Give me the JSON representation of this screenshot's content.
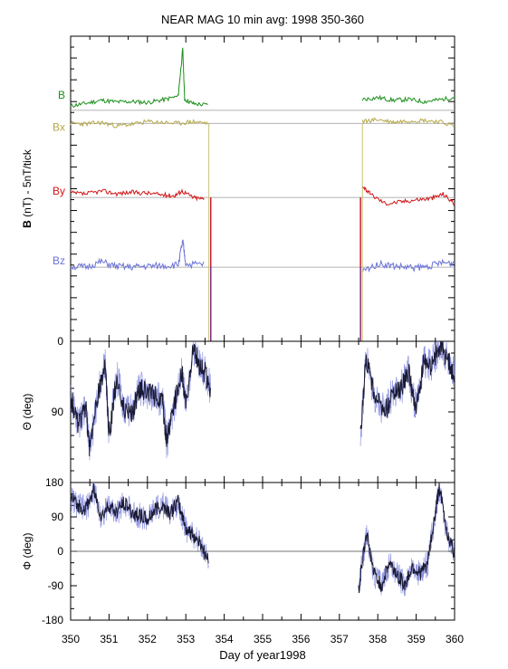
{
  "title": "NEAR MAG 10 min avg: 1998 350-360",
  "xlabel": "Day of year1998",
  "colors": {
    "B": "#1a8f1a",
    "Bx": "#b5a84a",
    "By": "#d01515",
    "Bz": "#6b73d6",
    "theta_fine": "#6b73d6",
    "theta_main": "#1a1a33",
    "phi_fine": "#6b73d6",
    "phi_main": "#1a1a33",
    "vline_yellow": "#c8c27a",
    "vline_red": "#c01020",
    "vline_purple": "#6a2c9a"
  },
  "chart_data": [
    {
      "type": "line",
      "panel": "B",
      "ylabel_bold": "B",
      "ylabel_rest": " (nT) - 5nT/tick",
      "y_tick_labels": [
        {
          "value": 0,
          "label": "0"
        }
      ],
      "x": {
        "range": [
          350,
          360
        ],
        "ticks": [
          350,
          351,
          352,
          353,
          354,
          355,
          356,
          357,
          358,
          359,
          360
        ]
      },
      "series": [
        {
          "name": "B",
          "offset": 53,
          "points": [
            [
              350.0,
              54
            ],
            [
              350.4,
              54.6
            ],
            [
              350.8,
              55.3
            ],
            [
              351.2,
              54.9
            ],
            [
              351.6,
              55.0
            ],
            [
              352.0,
              54.8
            ],
            [
              352.4,
              55.4
            ],
            [
              352.8,
              56.2
            ],
            [
              352.92,
              67
            ],
            [
              352.97,
              55.5
            ],
            [
              353.2,
              54.5
            ],
            [
              353.6,
              54.2
            ],
            [
              357.6,
              55.5
            ],
            [
              358.0,
              55.9
            ],
            [
              358.4,
              55.3
            ],
            [
              358.8,
              55.5
            ],
            [
              359.2,
              55.0
            ],
            [
              359.6,
              55.4
            ],
            [
              360.0,
              56.0
            ]
          ]
        },
        {
          "name": "Bx",
          "offset": 50,
          "points": [
            [
              350.0,
              50
            ],
            [
              350.4,
              49.9
            ],
            [
              350.8,
              50.2
            ],
            [
              351.2,
              49.4
            ],
            [
              351.6,
              49.8
            ],
            [
              352.0,
              50.4
            ],
            [
              352.4,
              50.2
            ],
            [
              352.8,
              50.0
            ],
            [
              353.2,
              50.4
            ],
            [
              353.6,
              50.0
            ],
            [
              357.6,
              50.4
            ],
            [
              358.0,
              50.9
            ],
            [
              358.4,
              50.3
            ],
            [
              358.8,
              50.6
            ],
            [
              359.2,
              50.7
            ],
            [
              359.6,
              50.4
            ],
            [
              360.0,
              49.4
            ]
          ]
        },
        {
          "name": "By",
          "offset": 33,
          "points": [
            [
              350.0,
              34
            ],
            [
              350.4,
              33.8
            ],
            [
              350.8,
              34.5
            ],
            [
              351.2,
              33.9
            ],
            [
              351.6,
              34.2
            ],
            [
              352.0,
              34.0
            ],
            [
              352.4,
              33.6
            ],
            [
              352.7,
              33.4
            ],
            [
              352.9,
              34.5
            ],
            [
              353.2,
              33.0
            ],
            [
              353.5,
              32.6
            ],
            [
              357.6,
              35.8
            ],
            [
              357.8,
              33.8
            ],
            [
              358.2,
              31.6
            ],
            [
              358.6,
              32.0
            ],
            [
              359.0,
              32.5
            ],
            [
              359.4,
              32.8
            ],
            [
              359.7,
              33.8
            ],
            [
              360.0,
              31.6
            ]
          ]
        },
        {
          "name": "Bz",
          "offset": 17,
          "points": [
            [
              350.0,
              17.2
            ],
            [
              350.4,
              17.0
            ],
            [
              350.8,
              18.2
            ],
            [
              351.2,
              17.1
            ],
            [
              351.6,
              17.0
            ],
            [
              352.0,
              17.2
            ],
            [
              352.4,
              17.3
            ],
            [
              352.8,
              17.5
            ],
            [
              352.92,
              23
            ],
            [
              353.0,
              17.6
            ],
            [
              353.5,
              17.7
            ],
            [
              357.6,
              16.0
            ],
            [
              358.0,
              17.8
            ],
            [
              358.4,
              17.3
            ],
            [
              358.8,
              16.9
            ],
            [
              359.2,
              17.0
            ],
            [
              359.6,
              17.9
            ],
            [
              360.0,
              18.0
            ]
          ]
        }
      ]
    },
    {
      "type": "line",
      "panel": "theta",
      "ylabel": "Θ (deg)",
      "ylim": [
        0,
        180
      ],
      "inverted": true,
      "y_tick_labels": [
        {
          "value": 90,
          "label": "90"
        }
      ],
      "x": {
        "range": [
          350,
          360
        ]
      },
      "series": [
        {
          "name": "theta",
          "points": [
            [
              350.0,
              70
            ],
            [
              350.2,
              105
            ],
            [
              350.4,
              85
            ],
            [
              350.5,
              140
            ],
            [
              350.7,
              70
            ],
            [
              350.9,
              30
            ],
            [
              351.0,
              120
            ],
            [
              351.2,
              45
            ],
            [
              351.4,
              85
            ],
            [
              351.6,
              90
            ],
            [
              351.8,
              60
            ],
            [
              352.0,
              65
            ],
            [
              352.2,
              70
            ],
            [
              352.4,
              75
            ],
            [
              352.5,
              130
            ],
            [
              352.7,
              80
            ],
            [
              352.9,
              40
            ],
            [
              353.0,
              80
            ],
            [
              353.2,
              10
            ],
            [
              353.35,
              30
            ],
            [
              353.5,
              40
            ],
            [
              353.65,
              60
            ],
            [
              357.55,
              120
            ],
            [
              357.7,
              20
            ],
            [
              357.9,
              70
            ],
            [
              358.2,
              90
            ],
            [
              358.4,
              65
            ],
            [
              358.6,
              60
            ],
            [
              358.8,
              40
            ],
            [
              359.0,
              85
            ],
            [
              359.2,
              25
            ],
            [
              359.4,
              30
            ],
            [
              359.6,
              5
            ],
            [
              359.8,
              20
            ],
            [
              360.0,
              45
            ]
          ]
        }
      ]
    },
    {
      "type": "line",
      "panel": "phi",
      "ylabel": "Φ (deg)",
      "ylim": [
        -180,
        180
      ],
      "y_tick_labels": [
        {
          "value": 180,
          "label": "180"
        },
        {
          "value": 90,
          "label": "90"
        },
        {
          "value": 0,
          "label": "0"
        },
        {
          "value": -90,
          "label": "-90"
        },
        {
          "value": -180,
          "label": "-180"
        }
      ],
      "x": {
        "range": [
          350,
          360
        ]
      },
      "series": [
        {
          "name": "phi",
          "points": [
            [
              350.0,
              140
            ],
            [
              350.2,
              120
            ],
            [
              350.4,
              110
            ],
            [
              350.6,
              160
            ],
            [
              350.8,
              90
            ],
            [
              351.0,
              120
            ],
            [
              351.2,
              100
            ],
            [
              351.4,
              130
            ],
            [
              351.6,
              100
            ],
            [
              351.8,
              95
            ],
            [
              352.0,
              80
            ],
            [
              352.2,
              110
            ],
            [
              352.4,
              120
            ],
            [
              352.6,
              100
            ],
            [
              352.8,
              130
            ],
            [
              353.0,
              60
            ],
            [
              353.2,
              40
            ],
            [
              353.4,
              20
            ],
            [
              353.6,
              -30
            ],
            [
              357.5,
              -100
            ],
            [
              357.7,
              50
            ],
            [
              357.9,
              -60
            ],
            [
              358.1,
              -90
            ],
            [
              358.3,
              -30
            ],
            [
              358.5,
              -60
            ],
            [
              358.7,
              -90
            ],
            [
              358.9,
              -40
            ],
            [
              359.1,
              -60
            ],
            [
              359.3,
              -30
            ],
            [
              359.5,
              100
            ],
            [
              359.6,
              170
            ],
            [
              359.8,
              50
            ],
            [
              360.0,
              -10
            ]
          ]
        }
      ]
    }
  ]
}
